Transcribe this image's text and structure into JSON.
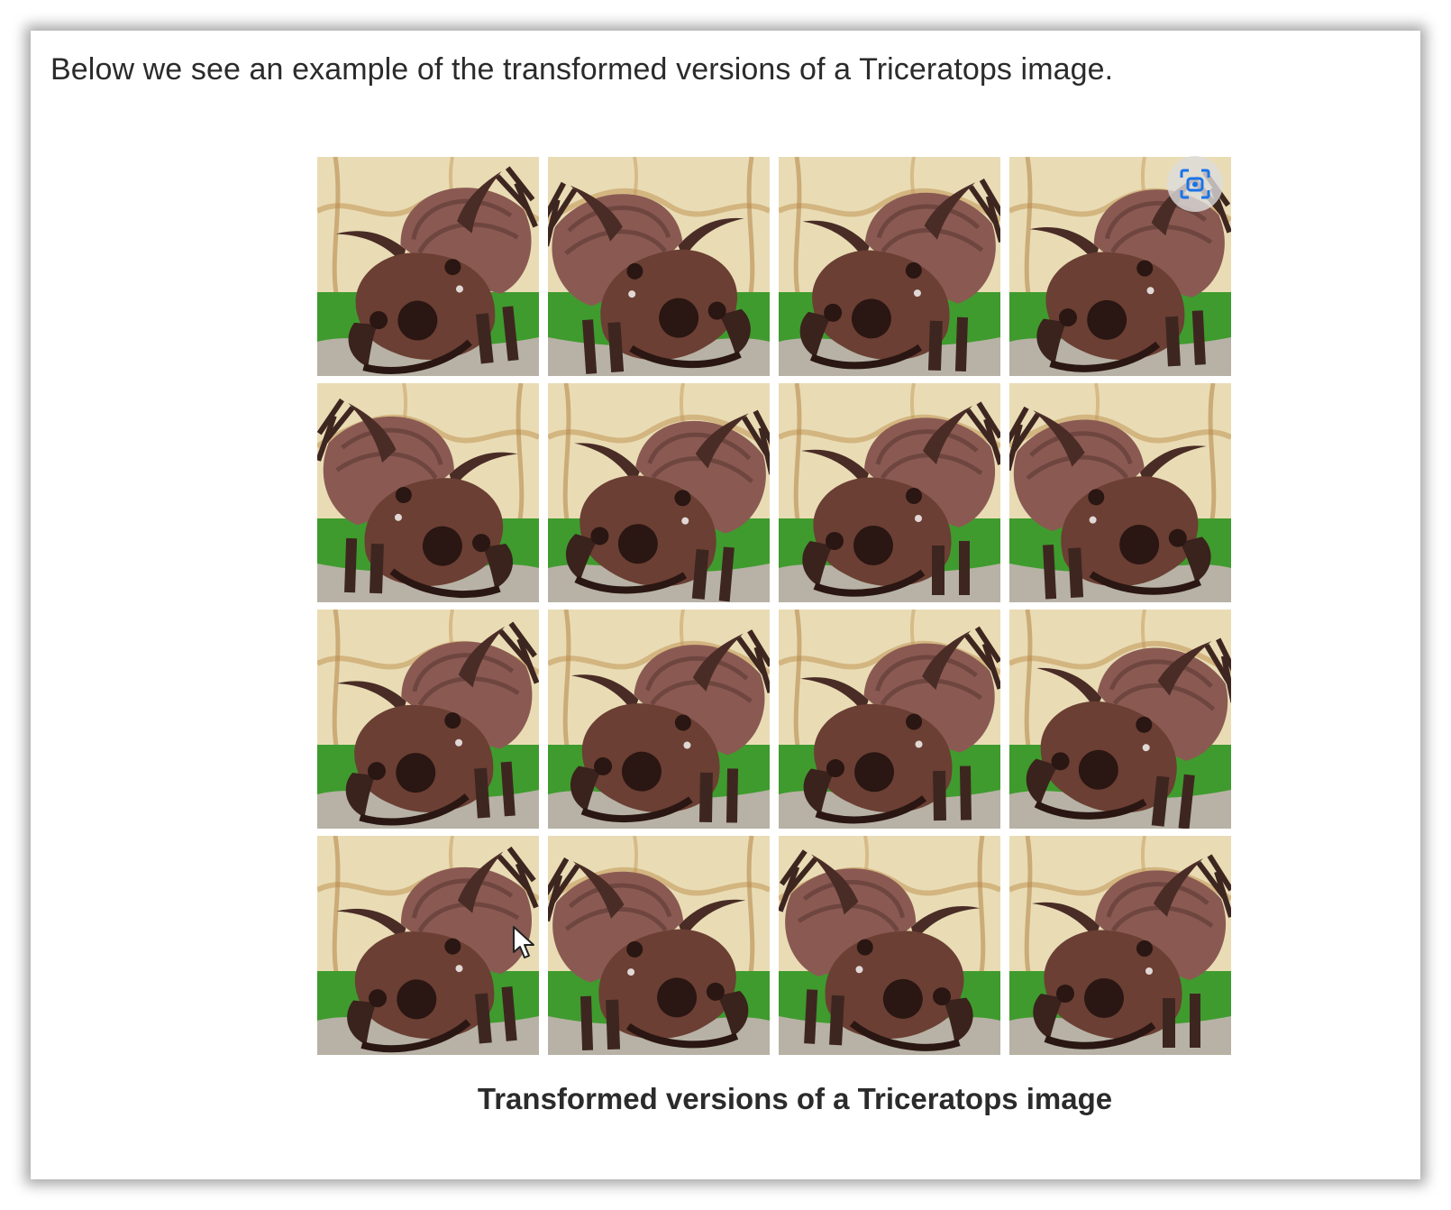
{
  "intro_text": "Below we see an example of the transformed versions of a Triceratops image.",
  "caption": "Transformed versions of a Triceratops image",
  "icons": {
    "lens": "visual-search-icon",
    "cursor": "mouse-pointer-icon"
  },
  "colors": {
    "text": "#2b2b2b",
    "grass": "#3f9b2e",
    "wall": "#e9dcb5",
    "skull": "#6b3f33",
    "accent_blue": "#1a73e8"
  },
  "grid": {
    "rows": 4,
    "columns": 4,
    "tiles": [
      {
        "flip": false,
        "tilt": -6
      },
      {
        "flip": true,
        "tilt": 4
      },
      {
        "flip": false,
        "tilt": 2
      },
      {
        "flip": false,
        "tilt": -3
      },
      {
        "flip": true,
        "tilt": -2
      },
      {
        "flip": false,
        "tilt": 5
      },
      {
        "flip": false,
        "tilt": 0
      },
      {
        "flip": true,
        "tilt": 3
      },
      {
        "flip": false,
        "tilt": -4
      },
      {
        "flip": false,
        "tilt": 1
      },
      {
        "flip": false,
        "tilt": -1
      },
      {
        "flip": false,
        "tilt": 6
      },
      {
        "flip": false,
        "tilt": -5
      },
      {
        "flip": true,
        "tilt": 2
      },
      {
        "flip": true,
        "tilt": -3
      },
      {
        "flip": false,
        "tilt": 0
      }
    ]
  }
}
